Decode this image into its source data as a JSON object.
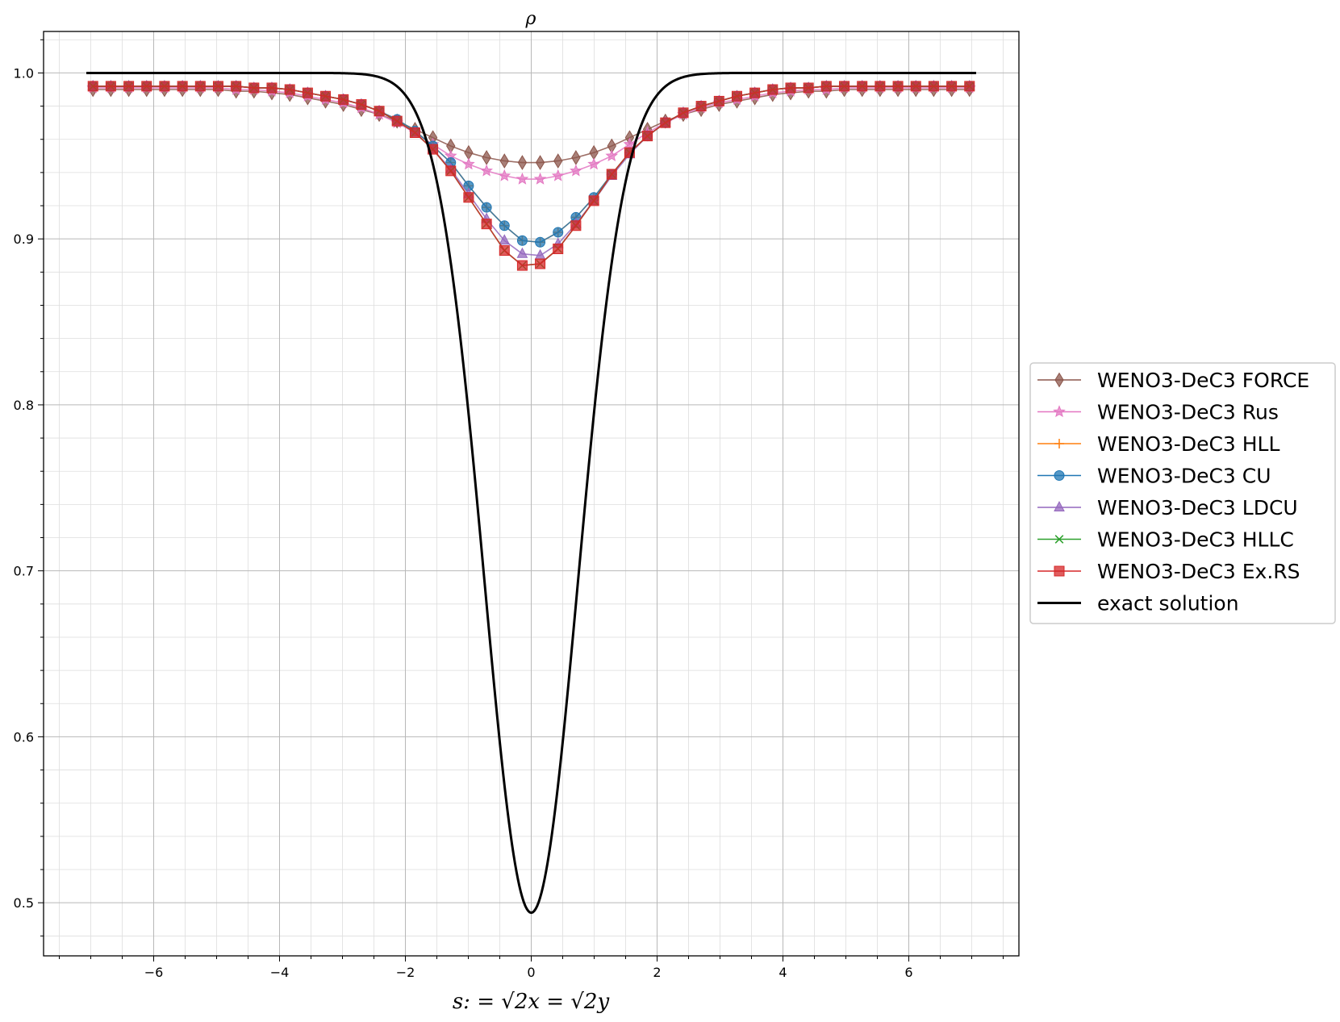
{
  "chart_data": {
    "type": "line",
    "title": "ρ",
    "xlabel": "s: = √2x = √2y",
    "ylabel": "",
    "xlim": [
      -7.75,
      7.75
    ],
    "ylim": [
      0.468,
      1.025
    ],
    "xticks": [
      -6,
      -4,
      -2,
      0,
      2,
      4,
      6
    ],
    "xtick_labels": [
      "−6",
      "−4",
      "−2",
      "0",
      "2",
      "4",
      "6"
    ],
    "yticks": [
      0.5,
      0.6,
      0.7,
      0.8,
      0.9,
      1.0
    ],
    "ytick_labels": [
      "0.5",
      "0.6",
      "0.7",
      "0.8",
      "0.9",
      "1.0"
    ],
    "grid": true,
    "legend_position": "center-right",
    "x": [
      -6.965,
      -6.681,
      -6.396,
      -6.112,
      -5.828,
      -5.543,
      -5.259,
      -4.975,
      -4.69,
      -4.406,
      -4.122,
      -3.837,
      -3.553,
      -3.269,
      -2.985,
      -2.7,
      -2.416,
      -2.132,
      -1.847,
      -1.563,
      -1.279,
      -0.995,
      -0.71,
      -0.426,
      -0.142,
      0.142,
      0.426,
      0.71,
      0.995,
      1.279,
      1.563,
      1.847,
      2.132,
      2.416,
      2.7,
      2.985,
      3.269,
      3.553,
      3.837,
      4.122,
      4.406,
      4.69,
      4.975,
      5.259,
      5.543,
      5.828,
      6.112,
      6.396,
      6.681,
      6.965
    ],
    "series": [
      {
        "name": "WENO3-DeC3 FORCE",
        "color": "#8c564b",
        "marker": "diamond",
        "values": [
          0.99,
          0.99,
          0.99,
          0.99,
          0.99,
          0.99,
          0.99,
          0.99,
          0.989,
          0.989,
          0.988,
          0.987,
          0.985,
          0.983,
          0.981,
          0.978,
          0.975,
          0.971,
          0.966,
          0.961,
          0.956,
          0.952,
          0.949,
          0.947,
          0.946,
          0.946,
          0.947,
          0.949,
          0.952,
          0.956,
          0.961,
          0.966,
          0.971,
          0.975,
          0.978,
          0.981,
          0.983,
          0.985,
          0.987,
          0.988,
          0.989,
          0.989,
          0.99,
          0.99,
          0.99,
          0.99,
          0.99,
          0.99,
          0.99,
          0.99
        ]
      },
      {
        "name": "WENO3-DeC3 Rus",
        "color": "#e377c2",
        "marker": "star",
        "values": [
          0.991,
          0.991,
          0.991,
          0.991,
          0.991,
          0.991,
          0.991,
          0.991,
          0.99,
          0.99,
          0.989,
          0.988,
          0.986,
          0.984,
          0.982,
          0.979,
          0.975,
          0.97,
          0.964,
          0.957,
          0.95,
          0.945,
          0.941,
          0.938,
          0.936,
          0.936,
          0.938,
          0.941,
          0.945,
          0.95,
          0.957,
          0.964,
          0.97,
          0.975,
          0.979,
          0.982,
          0.984,
          0.986,
          0.988,
          0.989,
          0.99,
          0.99,
          0.991,
          0.991,
          0.991,
          0.991,
          0.991,
          0.991,
          0.991,
          0.991
        ]
      },
      {
        "name": "WENO3-DeC3 HLL",
        "color": "#ff7f0e",
        "marker": "plus",
        "values": [
          0.992,
          0.992,
          0.992,
          0.992,
          0.992,
          0.992,
          0.992,
          0.992,
          0.992,
          0.991,
          0.991,
          0.99,
          0.988,
          0.986,
          0.984,
          0.981,
          0.977,
          0.972,
          0.965,
          0.956,
          0.946,
          0.932,
          0.919,
          0.908,
          0.899,
          0.898,
          0.904,
          0.913,
          0.925,
          0.939,
          0.952,
          0.962,
          0.97,
          0.976,
          0.98,
          0.983,
          0.986,
          0.988,
          0.99,
          0.991,
          0.991,
          0.992,
          0.992,
          0.992,
          0.992,
          0.992,
          0.992,
          0.992,
          0.992,
          0.992
        ]
      },
      {
        "name": "WENO3-DeC3 CU",
        "color": "#1f77b4",
        "marker": "circle",
        "values": [
          0.992,
          0.992,
          0.992,
          0.992,
          0.992,
          0.992,
          0.992,
          0.992,
          0.992,
          0.991,
          0.991,
          0.99,
          0.988,
          0.986,
          0.984,
          0.981,
          0.977,
          0.972,
          0.965,
          0.956,
          0.946,
          0.932,
          0.919,
          0.908,
          0.899,
          0.898,
          0.904,
          0.913,
          0.925,
          0.939,
          0.952,
          0.962,
          0.97,
          0.976,
          0.98,
          0.983,
          0.986,
          0.988,
          0.99,
          0.991,
          0.991,
          0.992,
          0.992,
          0.992,
          0.992,
          0.992,
          0.992,
          0.992,
          0.992,
          0.992
        ]
      },
      {
        "name": "WENO3-DeC3 LDCU",
        "color": "#9467bd",
        "marker": "triangle",
        "values": [
          0.992,
          0.992,
          0.992,
          0.992,
          0.992,
          0.992,
          0.992,
          0.992,
          0.992,
          0.991,
          0.991,
          0.99,
          0.988,
          0.986,
          0.984,
          0.981,
          0.977,
          0.971,
          0.964,
          0.954,
          0.942,
          0.927,
          0.912,
          0.899,
          0.891,
          0.89,
          0.897,
          0.909,
          0.923,
          0.938,
          0.951,
          0.962,
          0.97,
          0.976,
          0.98,
          0.983,
          0.986,
          0.988,
          0.99,
          0.991,
          0.991,
          0.992,
          0.992,
          0.992,
          0.992,
          0.992,
          0.992,
          0.992,
          0.992,
          0.992
        ]
      },
      {
        "name": "WENO3-DeC3 HLLC",
        "color": "#2ca02c",
        "marker": "x",
        "values": [
          0.992,
          0.992,
          0.992,
          0.992,
          0.992,
          0.992,
          0.992,
          0.992,
          0.992,
          0.991,
          0.991,
          0.99,
          0.988,
          0.986,
          0.984,
          0.981,
          0.977,
          0.971,
          0.964,
          0.954,
          0.941,
          0.925,
          0.909,
          0.893,
          0.884,
          0.885,
          0.894,
          0.908,
          0.923,
          0.939,
          0.952,
          0.962,
          0.97,
          0.976,
          0.98,
          0.983,
          0.986,
          0.988,
          0.99,
          0.991,
          0.991,
          0.992,
          0.992,
          0.992,
          0.992,
          0.992,
          0.992,
          0.992,
          0.992,
          0.992
        ]
      },
      {
        "name": "WENO3-DeC3 Ex.RS",
        "color": "#d62728",
        "marker": "square",
        "values": [
          0.992,
          0.992,
          0.992,
          0.992,
          0.992,
          0.992,
          0.992,
          0.992,
          0.992,
          0.991,
          0.991,
          0.99,
          0.988,
          0.986,
          0.984,
          0.981,
          0.977,
          0.971,
          0.964,
          0.954,
          0.941,
          0.925,
          0.909,
          0.893,
          0.884,
          0.885,
          0.894,
          0.908,
          0.923,
          0.939,
          0.952,
          0.962,
          0.97,
          0.976,
          0.98,
          0.983,
          0.986,
          0.988,
          0.99,
          0.991,
          0.991,
          0.992,
          0.992,
          0.992,
          0.992,
          0.992,
          0.992,
          0.992,
          0.992,
          0.992
        ]
      }
    ],
    "exact_solution": {
      "name": "exact solution",
      "color": "#000000",
      "x_range": [
        -7.07,
        7.07
      ],
      "values_described": "1 - 0.506*exp(-s^2/1.1)",
      "min": 0.494,
      "max": 1.0
    }
  }
}
